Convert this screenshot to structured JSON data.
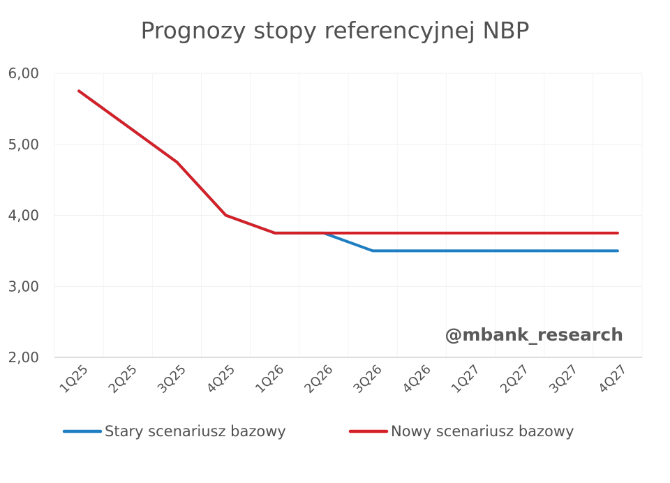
{
  "chart_data": {
    "type": "line",
    "title": "Prognozy stopy referencyjnej NBP",
    "categories": [
      "1Q25",
      "2Q25",
      "3Q25",
      "4Q25",
      "1Q26",
      "2Q26",
      "3Q26",
      "4Q26",
      "1Q27",
      "2Q27",
      "3Q27",
      "4Q27"
    ],
    "series": [
      {
        "name": "Stary scenariusz bazowy",
        "color": "#1F7EC1",
        "values": [
          5.75,
          5.25,
          4.75,
          4.0,
          3.75,
          3.75,
          3.5,
          3.5,
          3.5,
          3.5,
          3.5,
          3.5
        ]
      },
      {
        "name": "Nowy scenariusz bazowy",
        "color": "#D42027",
        "values": [
          5.75,
          5.25,
          4.75,
          4.0,
          3.75,
          3.75,
          3.75,
          3.75,
          3.75,
          3.75,
          3.75,
          3.75
        ]
      }
    ],
    "yticks": [
      "2,00",
      "3,00",
      "4,00",
      "5,00",
      "6,00"
    ],
    "ylim": [
      2,
      6
    ],
    "grid": true,
    "legend_position": "bottom",
    "annotation": "@mbank_research"
  }
}
